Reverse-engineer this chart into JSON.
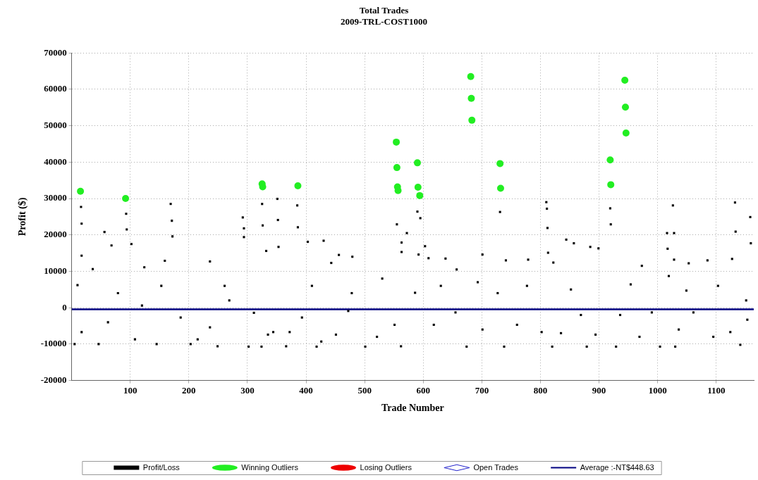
{
  "chart_data": {
    "type": "scatter",
    "title": "Total Trades",
    "subtitle": "2009-TRL-COST1000",
    "xlabel": "Trade Number",
    "ylabel": "Profit ($)",
    "xlim": [
      0,
      1164
    ],
    "ylim": [
      -20000,
      70000
    ],
    "xticks": [
      100,
      200,
      300,
      400,
      500,
      600,
      700,
      800,
      900,
      1000,
      1100
    ],
    "yticks": [
      -20000,
      -10000,
      0,
      10000,
      20000,
      30000,
      40000,
      50000,
      60000,
      70000
    ],
    "grid": true,
    "legend": "bottom",
    "series": [
      {
        "name": "Profit/Loss",
        "color": "#000000",
        "marker": "square",
        "x": [
          16,
          17,
          17,
          10,
          56,
          68,
          93,
          94,
          102,
          169,
          171,
          172,
          292,
          294,
          294,
          325,
          326,
          351,
          352,
          353,
          385,
          386,
          403,
          430,
          456,
          479,
          36,
          124,
          159,
          236,
          332,
          443,
          5,
          46,
          145,
          203,
          249,
          302,
          324,
          366,
          418,
          501,
          79,
          120,
          186,
          236,
          269,
          311,
          344,
          393,
          410,
          451,
          478,
          17,
          62,
          108,
          153,
          215,
          261,
          335,
          372,
          426,
          472,
          555,
          590,
          595,
          572,
          563,
          563,
          592,
          603,
          609,
          638,
          731,
          701,
          741,
          779,
          810,
          811,
          812,
          813,
          822,
          844,
          857,
          885,
          899,
          919,
          920,
          1026,
          1016,
          1028,
          1017,
          1028,
          1132,
          1133,
          1158,
          1159,
          1085,
          973,
          1053,
          1127,
          657,
          562,
          674,
          738,
          820,
          879,
          929,
          1004,
          1030,
          1141,
          521,
          551,
          618,
          655,
          701,
          760,
          802,
          835,
          869,
          894,
          936,
          969,
          990,
          1036,
          1061,
          1095,
          1124,
          1153,
          530,
          586,
          630,
          693,
          727,
          777,
          852,
          954,
          1019,
          1049,
          1103,
          1151
        ],
        "values": [
          27700,
          23100,
          14300,
          6200,
          20800,
          17100,
          25800,
          21500,
          17500,
          28500,
          23900,
          19600,
          24800,
          21800,
          19400,
          28500,
          22600,
          29900,
          24100,
          16700,
          28100,
          22100,
          18100,
          18400,
          14500,
          14000,
          10600,
          11100,
          12900,
          12700,
          15600,
          12300,
          -10000,
          -10000,
          -10000,
          -10000,
          -10600,
          -10700,
          -10700,
          -10600,
          -10700,
          -10700,
          4000,
          600,
          -2700,
          -5400,
          2000,
          -1400,
          -6700,
          -2700,
          6000,
          -7400,
          4000,
          -6700,
          -4000,
          -8700,
          6000,
          -8700,
          6000,
          -7400,
          -6700,
          -9300,
          -900,
          22900,
          26400,
          24600,
          20500,
          17900,
          15300,
          14600,
          16900,
          13600,
          13500,
          26300,
          14600,
          13000,
          13200,
          29000,
          27200,
          21900,
          15100,
          12400,
          18700,
          17700,
          16700,
          16300,
          27300,
          22900,
          28100,
          20500,
          20500,
          16200,
          13200,
          28900,
          20900,
          24900,
          17700,
          13000,
          11500,
          12200,
          13400,
          10500,
          -10600,
          -10700,
          -10700,
          -10700,
          -10700,
          -10700,
          -10700,
          -10700,
          -10200,
          -8000,
          -4700,
          -4700,
          -1300,
          -6000,
          -4700,
          -6700,
          -7000,
          -2000,
          -7400,
          -2000,
          -8000,
          -1300,
          -6000,
          -1300,
          -8000,
          -6700,
          -3300,
          8000,
          4100,
          6000,
          7000,
          4000,
          6000,
          5000,
          6400,
          8700,
          4700,
          6000,
          2000
        ]
      },
      {
        "name": "Winning Outliers",
        "color": "#22ee22",
        "marker": "circle",
        "x": [
          15,
          92,
          325,
          326,
          386,
          554,
          555,
          556,
          557,
          590,
          591,
          594,
          681,
          682,
          683,
          731,
          732,
          919,
          920,
          944,
          945,
          946
        ],
        "values": [
          32000,
          30000,
          34000,
          33200,
          33500,
          45500,
          38500,
          33200,
          32200,
          39800,
          33100,
          30800,
          63500,
          57500,
          51500,
          39600,
          32800,
          40600,
          33800,
          62500,
          55100,
          48000
        ]
      },
      {
        "name": "Losing Outliers",
        "color": "#ee0000",
        "marker": "circle"
      },
      {
        "name": "Open Trades",
        "color": "#2222cc",
        "marker": "diamond"
      },
      {
        "name": "Average :-NT$448.63",
        "color": "#000080",
        "type": "line",
        "marker": "none",
        "x": [
          0,
          1164
        ],
        "values": [
          -448.63,
          -448.63
        ]
      }
    ]
  }
}
